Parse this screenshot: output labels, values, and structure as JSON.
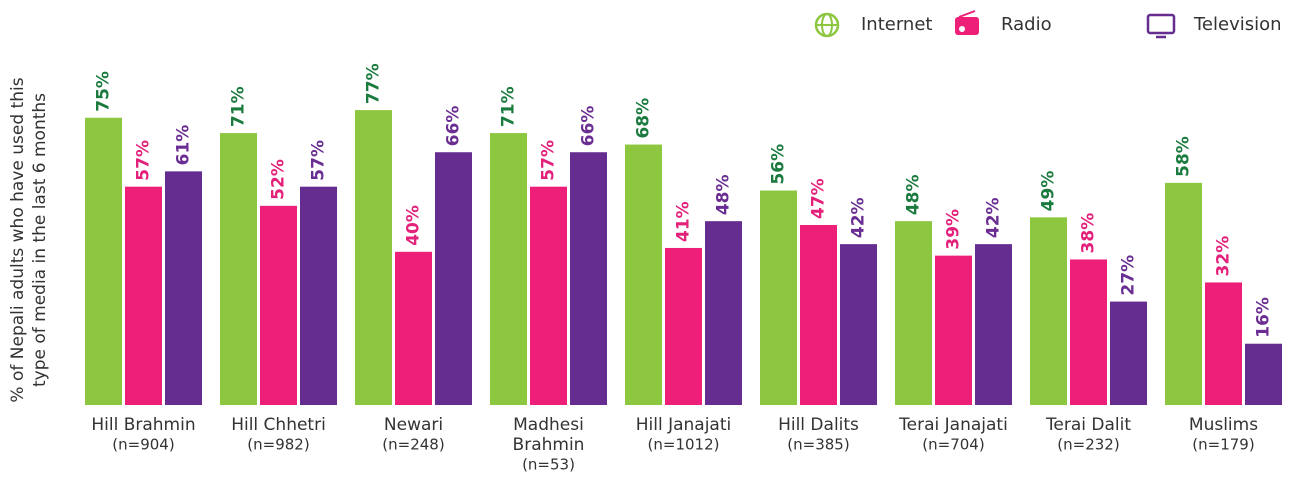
{
  "chart_data": {
    "type": "bar",
    "y_axis_label": [
      "% of Nepali adults who have used this",
      "type of media in the last 6 months"
    ],
    "categories": [
      [
        "Hill Brahmin"
      ],
      [
        "Hill Chhetri"
      ],
      [
        "Newari"
      ],
      [
        "Madhesi",
        "Brahmin"
      ],
      [
        "Hill Janajati"
      ],
      [
        "Hill Dalits"
      ],
      [
        "Terai Janajati"
      ],
      [
        "Terai Dalit"
      ],
      [
        "Muslims"
      ]
    ],
    "sample_sizes": [
      "(n=904)",
      "(n=982)",
      "(n=248)",
      "(n=53)",
      "(n=1012)",
      "(n=385)",
      "(n=704)",
      "(n=232)",
      "(n=179)"
    ],
    "ylim": [
      0,
      100
    ],
    "series": [
      {
        "name": "Internet",
        "color": "#8dc63f",
        "label_color": "#1b7a3e",
        "values": [
          75,
          71,
          77,
          71,
          68,
          56,
          48,
          49,
          58
        ],
        "value_labels": [
          "75%",
          "71%",
          "77%",
          "71%",
          "68%",
          "56%",
          "48%",
          "49%",
          "58%"
        ]
      },
      {
        "name": "Radio",
        "color": "#ee1f78",
        "label_color": "#e3217b",
        "values": [
          57,
          52,
          40,
          57,
          41,
          47,
          39,
          38,
          32
        ],
        "value_labels": [
          "57%",
          "52%",
          "40%",
          "57%",
          "41%",
          "47%",
          "39%",
          "38%",
          "32%"
        ]
      },
      {
        "name": "Television",
        "color": "#652d90",
        "label_color": "#6a2d92",
        "values": [
          61,
          57,
          66,
          66,
          48,
          42,
          42,
          27,
          16
        ],
        "value_labels": [
          "61%",
          "57%",
          "66%",
          "66%",
          "48%",
          "42%",
          "42%",
          "27%",
          "16%"
        ]
      }
    ]
  }
}
